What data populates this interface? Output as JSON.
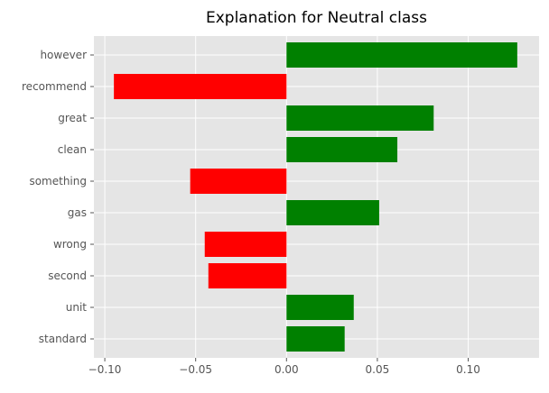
{
  "chart_data": {
    "type": "bar",
    "orientation": "horizontal",
    "title": "Explanation for Neutral class",
    "xlabel": "",
    "ylabel": "",
    "categories": [
      "however",
      "recommend",
      "great",
      "clean",
      "something",
      "gas",
      "wrong",
      "second",
      "unit",
      "standard"
    ],
    "values": [
      0.127,
      -0.095,
      0.081,
      0.061,
      -0.053,
      0.051,
      -0.045,
      -0.043,
      0.037,
      0.032
    ],
    "xlim": [
      -0.106,
      0.139
    ],
    "xticks": [
      -0.1,
      -0.05,
      0.0,
      0.05,
      0.1
    ],
    "xtick_labels": [
      "−0.10",
      "−0.05",
      "0.00",
      "0.05",
      "0.10"
    ],
    "grid": true,
    "colors": {
      "positive": "#008000",
      "negative": "#ff0000",
      "background": "#e5e5e5",
      "grid": "#ffffff"
    }
  }
}
